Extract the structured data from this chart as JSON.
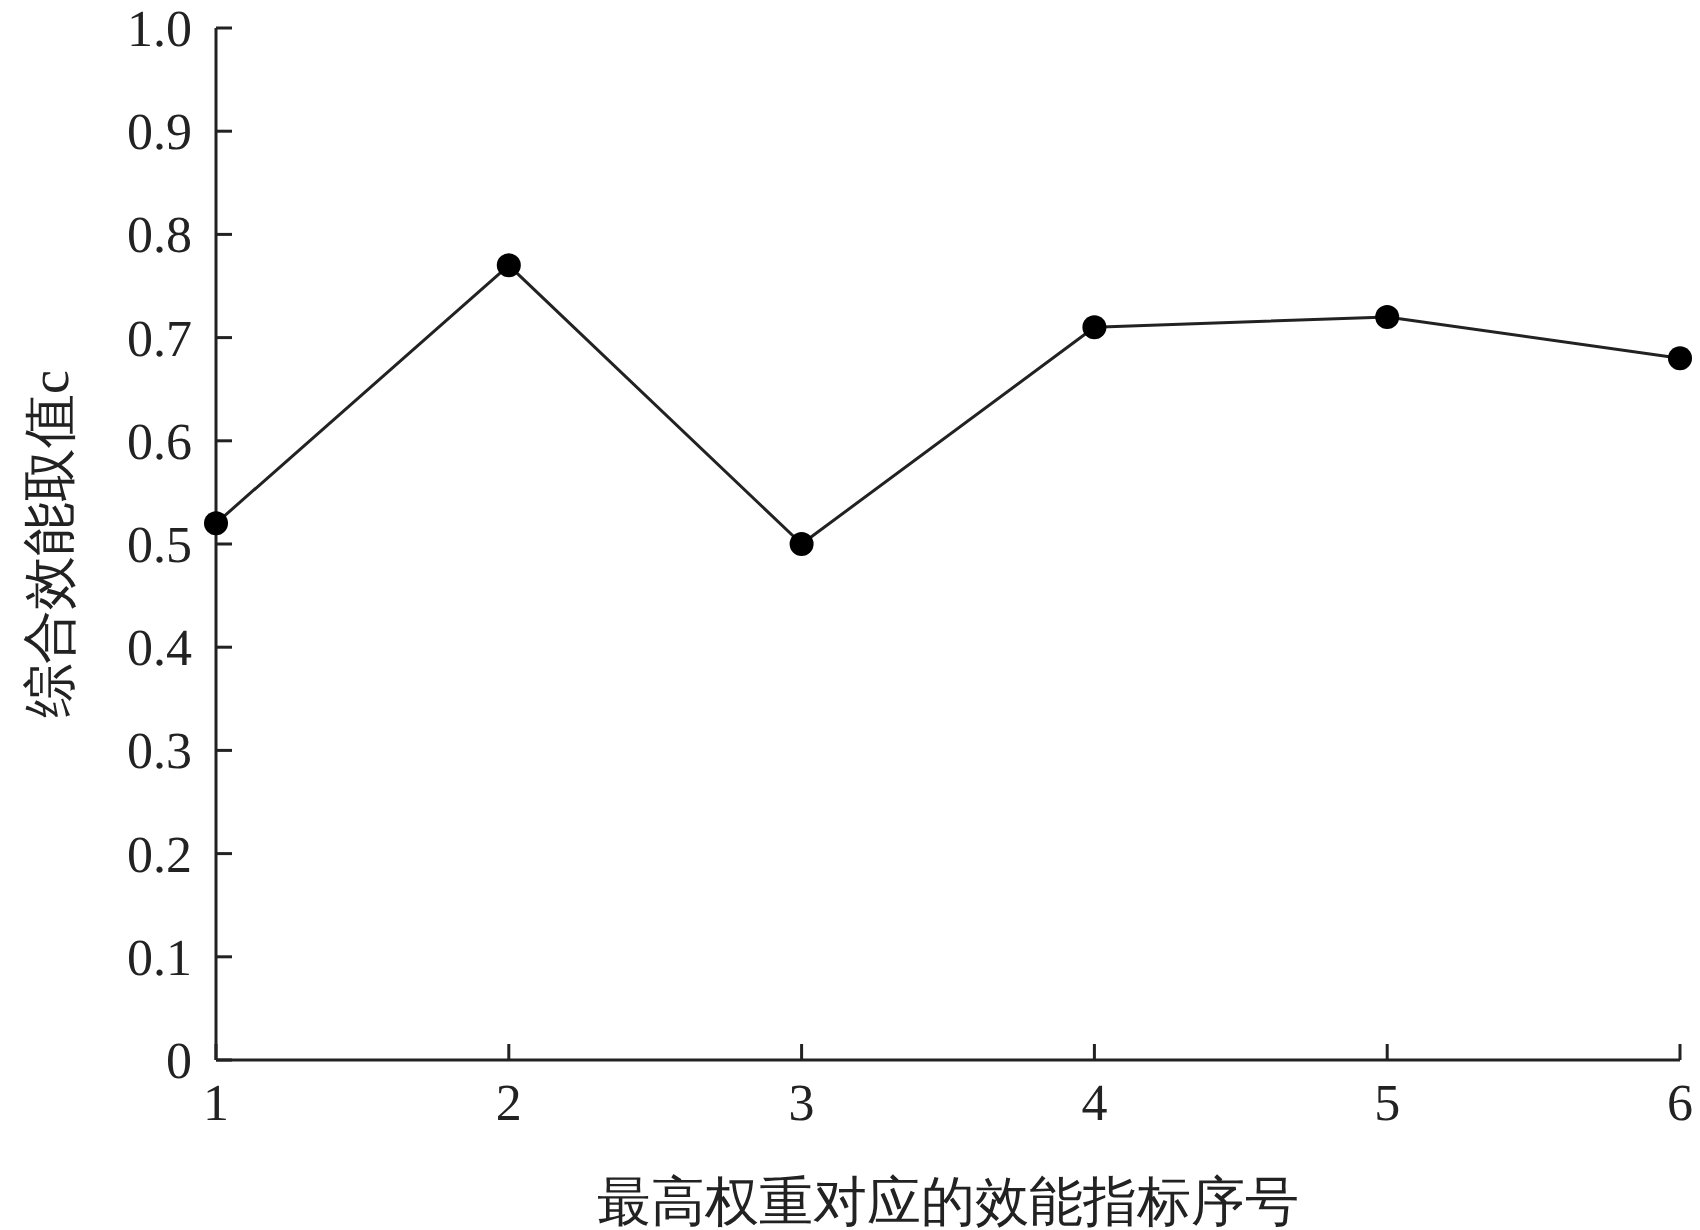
{
  "chart_data": {
    "type": "line",
    "xlabel": "最高权重对应的效能指标序号",
    "ylabel": "综合效能取值c",
    "x": [
      1,
      2,
      3,
      4,
      5,
      6
    ],
    "series": [
      {
        "color": "#222222",
        "values": [
          0.52,
          0.77,
          0.5,
          0.71,
          0.72,
          0.68
        ]
      }
    ],
    "xlim": [
      1,
      6
    ],
    "xticks": [
      1,
      2,
      3,
      4,
      5,
      6
    ],
    "ylim": [
      0,
      1
    ],
    "yticks": [
      0,
      0.1,
      0.2,
      0.3,
      0.4,
      0.5,
      0.6,
      0.7,
      0.8,
      0.9,
      {
        "value": 1,
        "label": "1.0"
      }
    ],
    "grid": false,
    "marker": "circle",
    "line_style": "solid"
  }
}
